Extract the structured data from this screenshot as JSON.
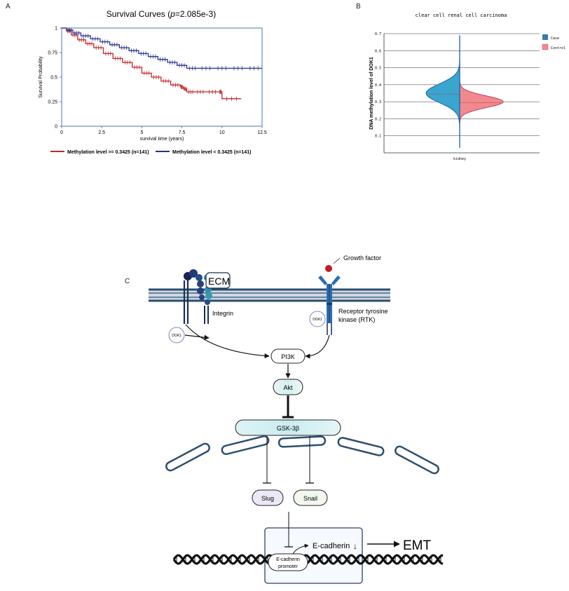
{
  "panel_a": {
    "letter": "A",
    "title_prefix": "Survival Curves (",
    "title_p": "p",
    "title_suffix": "=2.085e-3)",
    "chart_data": {
      "type": "line",
      "title": "Survival Curves (p=2.085e-3)",
      "xlabel": "survival time (years)",
      "ylabel": "Survival Probability",
      "xlim": [
        0,
        12.5
      ],
      "ylim": [
        0,
        1
      ],
      "xticks": [
        0,
        2.5,
        5,
        7.5,
        10,
        12.5
      ],
      "xtick_labels": [
        "0",
        "2.5",
        "5",
        "7.5",
        "10",
        "12.5"
      ],
      "yticks": [
        0,
        0.25,
        0.5,
        0.75,
        1
      ],
      "ytick_labels": [
        "0",
        "0.25",
        "0.5",
        "0.75",
        "1"
      ],
      "legend_placement": "bottom",
      "series": [
        {
          "name": "Methylation level >= 0.3425 (n=141)",
          "color": "#c0262d",
          "x": [
            0,
            0.3,
            0.6,
            1.0,
            1.5,
            2.0,
            2.6,
            3.2,
            3.8,
            4.4,
            5.0,
            5.6,
            6.2,
            6.8,
            7.4,
            7.6,
            7.8,
            8.3,
            9.0,
            9.8,
            10.0,
            11.2
          ],
          "y": [
            1.0,
            0.97,
            0.93,
            0.88,
            0.84,
            0.8,
            0.74,
            0.69,
            0.65,
            0.6,
            0.54,
            0.5,
            0.46,
            0.42,
            0.4,
            0.38,
            0.35,
            0.35,
            0.35,
            0.35,
            0.28,
            0.28
          ]
        },
        {
          "name": "Methylation level < 0.3425 (n=141)",
          "color": "#25328e",
          "x": [
            0,
            0.3,
            0.7,
            1.2,
            1.8,
            2.4,
            3.0,
            3.6,
            4.2,
            4.8,
            5.4,
            6.0,
            6.6,
            7.2,
            7.8,
            8.5,
            9.5,
            10.5,
            11.5,
            12.5
          ],
          "y": [
            1.0,
            0.98,
            0.95,
            0.92,
            0.89,
            0.86,
            0.83,
            0.8,
            0.77,
            0.74,
            0.71,
            0.68,
            0.65,
            0.62,
            0.59,
            0.59,
            0.59,
            0.59,
            0.59,
            0.59
          ]
        }
      ]
    }
  },
  "panel_b": {
    "letter": "B",
    "chart_data": {
      "type": "area",
      "title": "clear cell renal cell carcinoma",
      "ylabel": "DNA methylation level of DOK1",
      "xlabel": "kidney",
      "ylim": [
        0,
        0.7
      ],
      "yticks": [
        0.1,
        0.2,
        0.3,
        0.4,
        0.5,
        0.6,
        0.7
      ],
      "ytick_labels": [
        "0.1",
        "0.2",
        "0.3",
        "0.4",
        "0.5",
        "0.6",
        "0.7"
      ],
      "legend_placement": "right",
      "series": [
        {
          "name": "Case",
          "color": "#3aa6d0",
          "median": 0.345,
          "min": 0.03,
          "max": 0.69,
          "mode": 0.35
        },
        {
          "name": "Control",
          "color": "#f08a8f",
          "median": 0.295,
          "min": 0.18,
          "max": 0.44,
          "mode": 0.3
        }
      ]
    }
  },
  "panel_c": {
    "letter": "C",
    "ecm_label": "ECM",
    "growth_factor": "Growth factor",
    "integrin": "Integrin",
    "rtk_line1": "Receptor tyrosine",
    "rtk_line2": "kinase (RTK)",
    "dok1_left": "DOK1",
    "dok1_right": "DOK1",
    "pi3k": "PI3K",
    "akt": "Akt",
    "gsk3b": "GSK-3β",
    "slug": "Slug",
    "snail": "Snail",
    "ecadherin": "E-cadherin",
    "promoter_line1": "E-cadherin",
    "promoter_line2": "promoter",
    "emt": "EMT",
    "down_arrow": "↓"
  }
}
